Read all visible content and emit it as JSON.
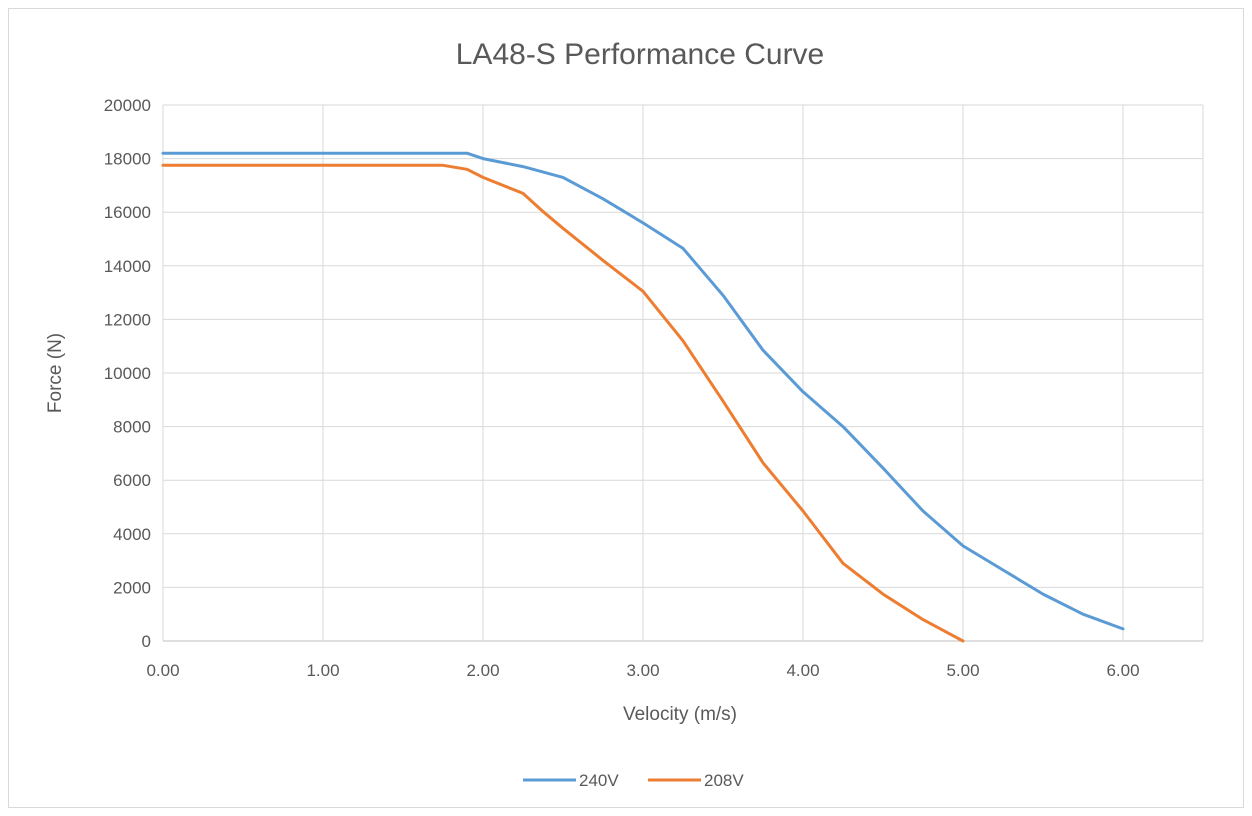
{
  "chart_data": {
    "type": "line",
    "title": "LA48-S Performance Curve",
    "xlabel": "Velocity (m/s)",
    "ylabel": "Force (N)",
    "xlim": [
      0,
      6.5
    ],
    "ylim": [
      0,
      20000
    ],
    "x_ticks": [
      "0.00",
      "1.00",
      "2.00",
      "3.00",
      "4.00",
      "5.00",
      "6.00"
    ],
    "y_ticks": [
      "0",
      "2000",
      "4000",
      "6000",
      "8000",
      "10000",
      "12000",
      "14000",
      "16000",
      "18000",
      "20000"
    ],
    "grid": true,
    "legend_position": "bottom",
    "series": [
      {
        "name": "240V",
        "color": "#5b9bd5",
        "points": [
          [
            0,
            18200
          ],
          [
            1.9,
            18200
          ],
          [
            2.0,
            18000
          ],
          [
            2.25,
            17700
          ],
          [
            2.5,
            17300
          ],
          [
            2.75,
            16500
          ],
          [
            3.0,
            15600
          ],
          [
            3.25,
            14650
          ],
          [
            3.5,
            12900
          ],
          [
            3.75,
            10850
          ],
          [
            4.0,
            9300
          ],
          [
            4.25,
            8000
          ],
          [
            4.5,
            6450
          ],
          [
            4.75,
            4850
          ],
          [
            5.0,
            3550
          ],
          [
            5.25,
            2650
          ],
          [
            5.5,
            1750
          ],
          [
            5.75,
            1000
          ],
          [
            6.0,
            450
          ]
        ]
      },
      {
        "name": "208V",
        "color": "#ed7d31",
        "points": [
          [
            0,
            17750
          ],
          [
            1.75,
            17750
          ],
          [
            1.9,
            17600
          ],
          [
            2.0,
            17300
          ],
          [
            2.25,
            16700
          ],
          [
            2.38,
            16000
          ],
          [
            2.5,
            15400
          ],
          [
            2.75,
            14200
          ],
          [
            3.0,
            13050
          ],
          [
            3.25,
            11200
          ],
          [
            3.5,
            8950
          ],
          [
            3.75,
            6650
          ],
          [
            4.0,
            4850
          ],
          [
            4.25,
            2900
          ],
          [
            4.5,
            1750
          ],
          [
            4.75,
            800
          ],
          [
            5.0,
            0
          ]
        ]
      }
    ]
  }
}
